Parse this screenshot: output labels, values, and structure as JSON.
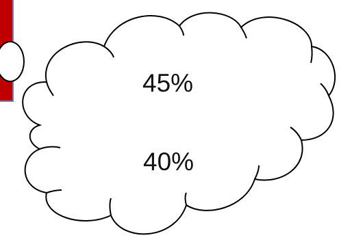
{
  "values": {
    "upper": "45%",
    "lower": "40%"
  },
  "colors": {
    "accent_fill": "#c00000",
    "accent_border": "#5b86c8",
    "outline": "#000000",
    "background": "#ffffff"
  }
}
